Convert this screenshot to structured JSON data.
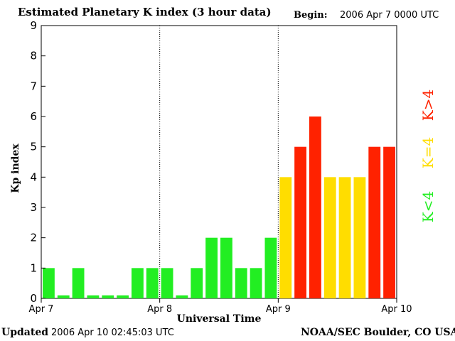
{
  "header": {
    "title": "Estimated Planetary K index (3 hour data)",
    "begin_label": "Begin:",
    "begin_value": "2006 Apr 7 0000 UTC"
  },
  "footer": {
    "updated_label": "Updated",
    "updated_value": "2006 Apr 10 02:45:03 UTC",
    "credit": "NOAA/SEC Boulder, CO USA"
  },
  "legend": {
    "high": "K>4",
    "mid": "K=4",
    "low": "K<4",
    "colors": {
      "low": "#22ee22",
      "mid": "#ffdd00",
      "high": "#ff2200"
    }
  },
  "chart_data": {
    "type": "bar",
    "title": "Estimated Planetary K index (3 hour data)",
    "xlabel": "Universal Time",
    "ylabel": "Kp index",
    "ylim": [
      0,
      9
    ],
    "yticks": [
      "0",
      "1",
      "2",
      "3",
      "4",
      "5",
      "6",
      "7",
      "8",
      "9"
    ],
    "xticks": [
      "Apr 7",
      "Apr 8",
      "Apr 9",
      "Apr 10"
    ],
    "grid": "dotted vertical lines at day boundaries",
    "series": [
      {
        "name": "Kp",
        "values": [
          1,
          0.1,
          1,
          0.1,
          0.1,
          0.1,
          1,
          1,
          1,
          0.1,
          1,
          2,
          2,
          1,
          1,
          2,
          4,
          5,
          6,
          4,
          4,
          4,
          5,
          5
        ]
      }
    ]
  }
}
